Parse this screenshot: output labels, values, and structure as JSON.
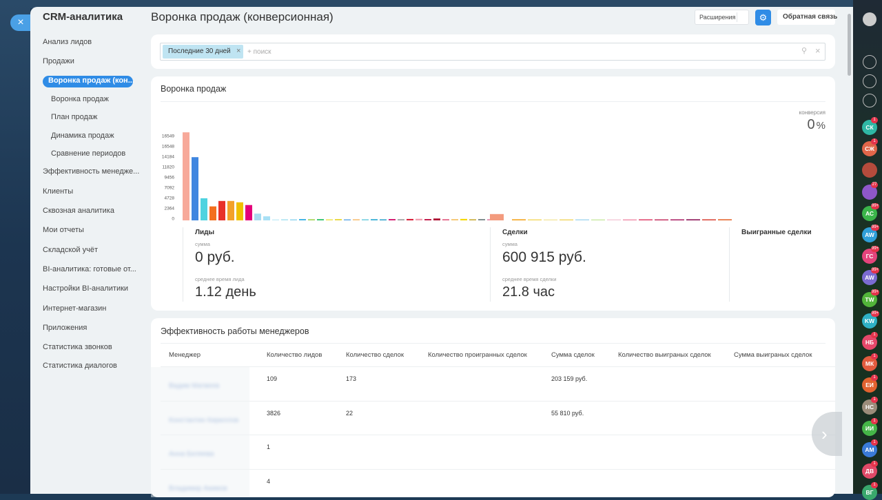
{
  "sidebar": {
    "title": "CRM-аналитика",
    "items": [
      {
        "label": "Анализ лидов",
        "level": 0
      },
      {
        "label": "Продажи",
        "level": 0
      },
      {
        "label": "Воронка продаж (кон...",
        "level": 1,
        "active": true
      },
      {
        "label": "Воронка продаж",
        "level": 1
      },
      {
        "label": "План продаж",
        "level": 1
      },
      {
        "label": "Динамика продаж",
        "level": 1
      },
      {
        "label": "Сравнение периодов",
        "level": 1
      },
      {
        "label": "Эффективность менедже...",
        "level": 0
      },
      {
        "label": "Клиенты",
        "level": 0
      },
      {
        "label": "Сквозная аналитика",
        "level": 0
      },
      {
        "label": "Мои отчеты",
        "level": 0
      },
      {
        "label": "Складской учёт",
        "level": 0
      },
      {
        "label": "BI-аналитика: готовые от...",
        "level": 0
      },
      {
        "label": "Настройки BI-аналитики",
        "level": 0
      },
      {
        "label": "Интернет-магазин",
        "level": 0
      },
      {
        "label": "Приложения",
        "level": 0
      },
      {
        "label": "Статистика звонков",
        "level": 0
      },
      {
        "label": "Статистика диалогов",
        "level": 0
      }
    ]
  },
  "header": {
    "title": "Воронка продаж (конверсионная)",
    "extensions_button": "Расширения",
    "feedback_button": "Обратная связь"
  },
  "filter": {
    "tag": "Последние 30 дней",
    "placeholder": "+ поиск"
  },
  "funnel": {
    "title": "Воронка продаж",
    "conversion_label": "конверсия",
    "conversion_value": 0,
    "conversion_unit": "%",
    "chart_data": {
      "type": "bar",
      "y_axis_labels": [
        "16549",
        "16548",
        "14184",
        "11820",
        "9456",
        "7092",
        "4728",
        "2364",
        "0"
      ],
      "ylim": [
        0,
        18912
      ],
      "categories": [
        null,
        null,
        null,
        null,
        null,
        null,
        null,
        null,
        null,
        null,
        null,
        null,
        null,
        null,
        null,
        null,
        null,
        null,
        null,
        null,
        null,
        null,
        null,
        null,
        null,
        null,
        null,
        null,
        null,
        null,
        null,
        null,
        null,
        null,
        null,
        null,
        null,
        null,
        null,
        null,
        null,
        null,
        null,
        null,
        null,
        null,
        null,
        null,
        null,
        null
      ],
      "values": [
        19500,
        14000,
        4900,
        3100,
        4300,
        4300,
        4000,
        3400,
        1500,
        900,
        200,
        250,
        220,
        300,
        260,
        280,
        240,
        300,
        220,
        260,
        250,
        280,
        230,
        300,
        260,
        320,
        350,
        300,
        420,
        260,
        280,
        330,
        250,
        300,
        260,
        1400,
        250,
        220,
        200,
        210,
        230,
        200,
        220,
        210,
        240,
        220,
        230,
        250,
        240,
        260
      ],
      "colors": [
        "#f7a99a",
        "#3f86e0",
        "#4fd3e0",
        "#f36f1f",
        "#e8312a",
        "#f3a12a",
        "#f0c000",
        "#e4007a",
        "#a8dcf0",
        "#a8e0f5",
        "#c2ecf7",
        "#aee3f2",
        "#8fd4ef",
        "#42b4e6",
        "#a5d55a",
        "#2fc26e",
        "#f0e45a",
        "#e9d844",
        "#5ea7e6",
        "#f8c37c",
        "#78d0e0",
        "#3db1d6",
        "#2aa0c9",
        "#d41c72",
        "#9e9e9e",
        "#d8203a",
        "#f2a0b0",
        "#c21b4b",
        "#ac1031",
        "#e25d80",
        "#f5c46d",
        "#f5d800",
        "#c9ab3a",
        "#7f8c8d",
        "#e08ab0",
        "#f39b7e",
        "#f5a623",
        "#f4d860",
        "#f3e59a",
        "#f0d35a",
        "#a8d8f0",
        "#c6e89c",
        "#f4c9d8",
        "#ef89a6",
        "#e0476e",
        "#c22a5a",
        "#a81b60",
        "#8e1a5a",
        "#d9473b",
        "#e6703a"
      ]
    },
    "summary": [
      {
        "title": "Лиды",
        "sum_label": "сумма",
        "sum": "0 руб.",
        "time_label": "среднее время лида",
        "time": "1.12 день"
      },
      {
        "title": "Сделки",
        "sum_label": "сумма",
        "sum": "600 915 руб.",
        "time_label": "среднее время сделки",
        "time": "21.8 час"
      },
      {
        "title": "Выигранные сделки"
      }
    ]
  },
  "table": {
    "title": "Эффективность работы менеджеров",
    "columns": [
      "Менеджер",
      "Количество лидов",
      "Количество сделок",
      "Количество проигранных сделок",
      "Сумма сделок",
      "Количество выиграных сделок",
      "Сумма выиграных сделок"
    ],
    "rows": [
      [
        null,
        "109",
        "173",
        null,
        "203 159 руб.",
        null,
        null
      ],
      [
        null,
        "3826",
        "22",
        null,
        "55 810 руб.",
        null,
        null
      ],
      [
        null,
        "1",
        null,
        null,
        null,
        null,
        null
      ],
      [
        null,
        "4",
        null,
        null,
        null,
        null,
        null
      ]
    ]
  },
  "avatars": [
    {
      "initials": "СК",
      "badge": "1",
      "color": "#2fb7a5"
    },
    {
      "initials": "СЖ",
      "badge": "1",
      "color": "#e0664a"
    },
    {
      "initials": null,
      "badge": null,
      "color": "#b44b3c"
    },
    {
      "initials": null,
      "badge": "27",
      "color": "#8e57c9"
    },
    {
      "initials": "АС",
      "badge": "99+",
      "color": "#3bb54a"
    },
    {
      "initials": "AW",
      "badge": "99+",
      "color": "#2f9fd8"
    },
    {
      "initials": "ГС",
      "badge": "99+",
      "color": "#e4447b"
    },
    {
      "initials": "AW",
      "badge": "99+",
      "color": "#7a6bd1"
    },
    {
      "initials": "TW",
      "badge": "99+",
      "color": "#52b43a"
    },
    {
      "initials": "KW",
      "badge": "99+",
      "color": "#2fb0c4"
    },
    {
      "initials": "НБ",
      "badge": "1",
      "color": "#e5486a"
    },
    {
      "initials": "МК",
      "badge": "1",
      "color": "#e25b3e"
    },
    {
      "initials": "ЕИ",
      "badge": "1",
      "color": "#e2622f"
    },
    {
      "initials": "НС",
      "badge": "1",
      "color": "#9b8c7a"
    },
    {
      "initials": "ИИ",
      "badge": "1",
      "color": "#45b548"
    },
    {
      "initials": "АМ",
      "badge": "1",
      "color": "#3a7ad8"
    },
    {
      "initials": "ДВ",
      "badge": "1",
      "color": "#e04968"
    },
    {
      "initials": "ВГ",
      "badge": "1",
      "color": "#39a86c"
    }
  ]
}
